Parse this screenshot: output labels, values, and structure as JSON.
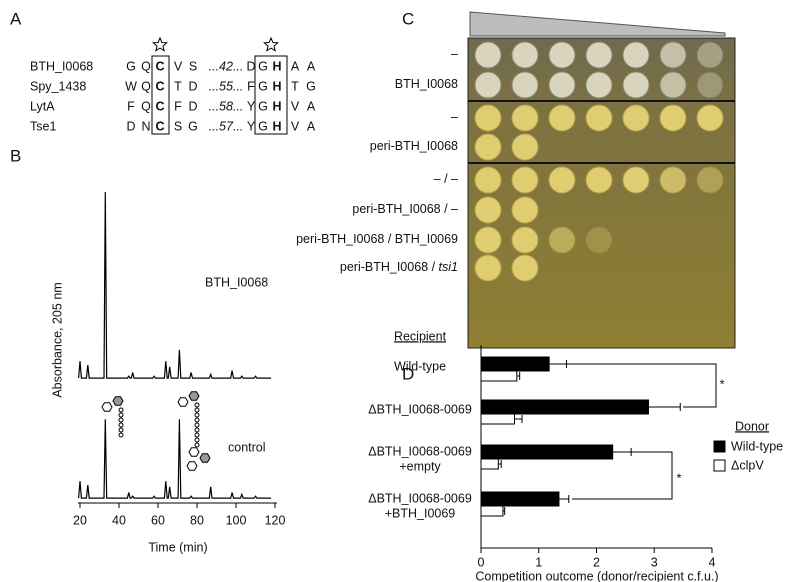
{
  "panels": [
    "A",
    "B",
    "C",
    "D"
  ],
  "alignment": {
    "rows": [
      {
        "name": "BTH_I0068",
        "residues": [
          "G",
          "Q",
          "C",
          "V",
          "S",
          "...42...",
          "D",
          "G",
          "H",
          "A",
          "A"
        ]
      },
      {
        "name": "Spy_1438",
        "residues": [
          "W",
          "Q",
          "C",
          "T",
          "D",
          "...55...",
          "F",
          "G",
          "H",
          "T",
          "G"
        ]
      },
      {
        "name": "LytA",
        "residues": [
          "F",
          "Q",
          "C",
          "F",
          "D",
          "...58...",
          "Y",
          "G",
          "H",
          "V",
          "A"
        ]
      },
      {
        "name": "Tse1",
        "residues": [
          "D",
          "N",
          "C",
          "S",
          "G",
          "...57...",
          "Y",
          "G",
          "H",
          "V",
          "A"
        ]
      }
    ]
  },
  "plate": {
    "rows": [
      {
        "text": "–"
      },
      {
        "text": "BTH_I0068"
      },
      {
        "text": "–"
      },
      {
        "text": "peri-BTH_I0068"
      },
      {
        "text": "– / –"
      },
      {
        "text": "peri-BTH_I0068 / –"
      },
      {
        "text": "peri-BTH_I0068 / BTH_I0069"
      },
      {
        "text": "peri-BTH_I0068 / ",
        "italic": "tsi1"
      }
    ]
  },
  "chart_data": [
    {
      "type": "line",
      "xlabel": "Time (min)",
      "ylabel": "Absorbance, 205 nm",
      "x": [
        19.3,
        20,
        20.7,
        23.3,
        24,
        24.7,
        32.3,
        33,
        33.7,
        44.3,
        45,
        45.7,
        46.3,
        47,
        47.7,
        57.3,
        58,
        58.7,
        63.3,
        64,
        64.7,
        65.3,
        66,
        66.7,
        70.3,
        71,
        71.7,
        76.3,
        77,
        77.7,
        86.3,
        87,
        87.7,
        97.3,
        98,
        98.7,
        102.3,
        103,
        103.7,
        109.3,
        110,
        110.7,
        118
      ],
      "series": [
        {
          "name": "BTH_I0068",
          "color": "#000000",
          "values": [
            1,
            10,
            1,
            1,
            8,
            1,
            1,
            100,
            1,
            1,
            2,
            1,
            1,
            4,
            1,
            1,
            2,
            1,
            1,
            10,
            1,
            1,
            7,
            1,
            1,
            16,
            1,
            1,
            4,
            1,
            1,
            3,
            1,
            1,
            5,
            1,
            1,
            2,
            1,
            1,
            2,
            1,
            1
          ]
        },
        {
          "name": "control",
          "color": "#000000",
          "values": [
            1,
            10,
            1,
            1,
            8,
            1,
            1,
            43,
            1,
            1,
            4,
            1,
            1,
            2,
            1,
            1,
            2,
            1,
            1,
            10,
            1,
            1,
            7,
            1,
            1,
            43,
            1,
            1,
            2,
            1,
            1,
            7,
            1,
            1,
            4,
            1,
            1,
            3,
            1,
            1,
            2,
            1,
            1
          ]
        }
      ],
      "xlim": [
        20,
        120
      ],
      "xticks": [
        20,
        40,
        60,
        80,
        100,
        120
      ],
      "ylim": [
        0,
        100
      ]
    },
    {
      "type": "barh",
      "ylabel": "Recipient",
      "xlabel": "Competition outcome (donor/recipient c.f.u.)",
      "categories": [
        [
          "Wild-type"
        ],
        [
          "ΔBTH_I0068-0069"
        ],
        [
          "ΔBTH_I0068-0069",
          "+empty"
        ],
        [
          "ΔBTH_I0068-0069",
          "+BTH_I0069"
        ]
      ],
      "series": [
        {
          "name": "Wild-type",
          "color": "#000000",
          "values": [
            1.18,
            2.9,
            2.28,
            1.35
          ],
          "errors": [
            0.3,
            0.55,
            0.32,
            0.17
          ]
        },
        {
          "name": "ΔclpV",
          "color": "#ffffff",
          "values": [
            0.62,
            0.58,
            0.3,
            0.38
          ],
          "errors": [
            0.05,
            0.13,
            0.05,
            0.03
          ]
        }
      ],
      "xlim": [
        0,
        4
      ],
      "xticks": [
        0,
        1,
        2,
        3,
        4
      ],
      "legend_title": "Donor",
      "legend": "right",
      "annotations": [
        "*",
        "*"
      ]
    }
  ]
}
